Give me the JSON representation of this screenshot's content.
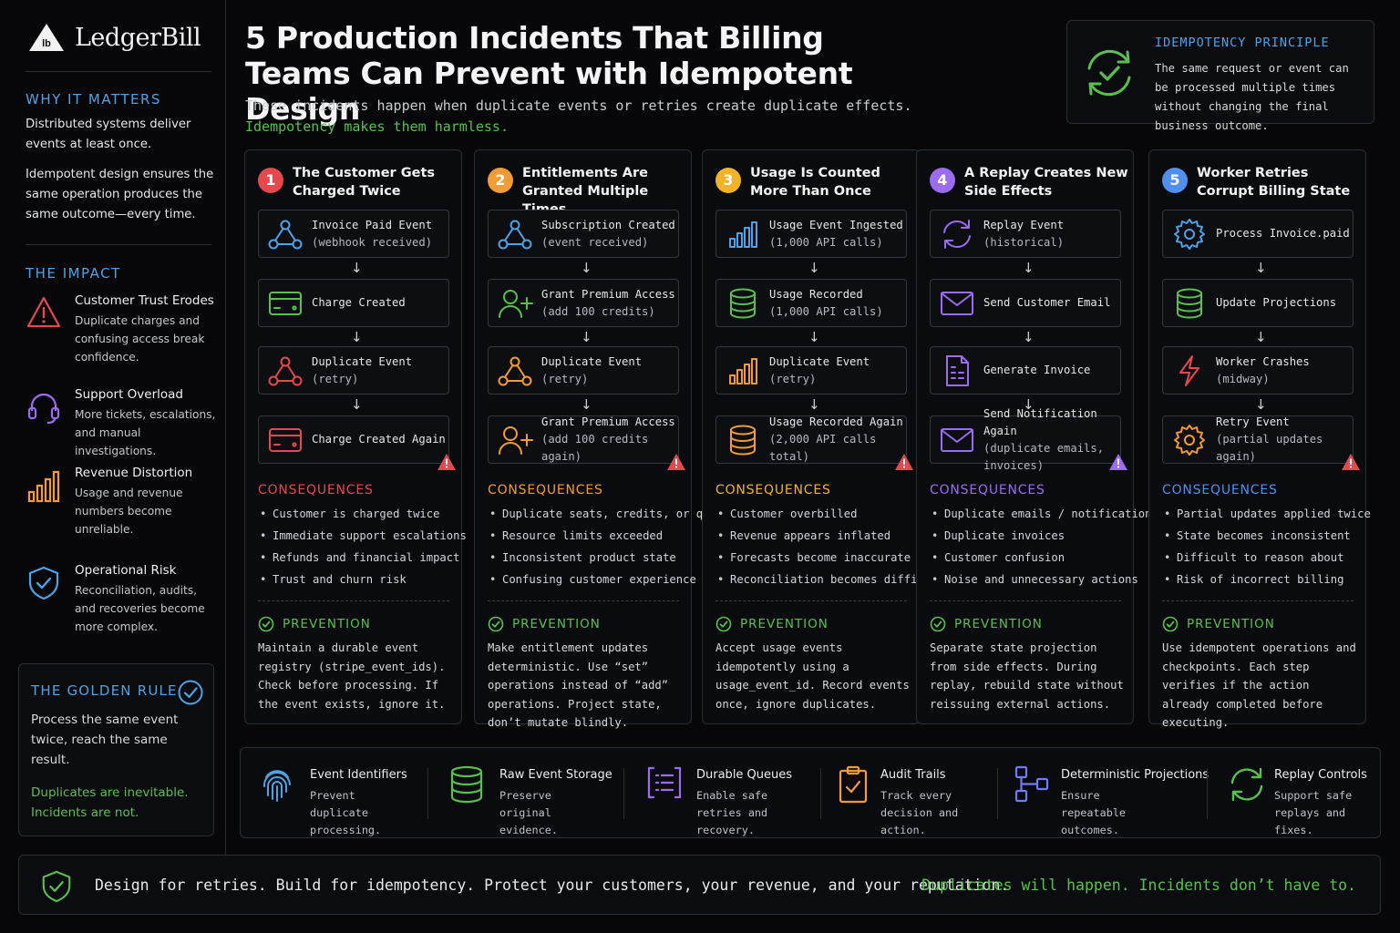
{
  "brand": {
    "logo_text": "lb",
    "name": "LedgerBill"
  },
  "sidebar": {
    "why_heading": "WHY IT MATTERS",
    "why_p1": "Distributed systems deliver events at least once.",
    "why_p2": "Idempotent design ensures the same operation produces the same outcome—every time.",
    "impact_heading": "THE IMPACT",
    "impacts": [
      {
        "title": "Customer Trust Erodes",
        "text": "Duplicate charges and confusing access break confidence.",
        "icon": "warning-triangle-icon",
        "color": "#e5484d"
      },
      {
        "title": "Support Overload",
        "text": "More tickets, escalations, and manual investigations.",
        "icon": "headset-icon",
        "color": "#9b6cf0"
      },
      {
        "title": "Revenue Distortion",
        "text": "Usage and revenue numbers become unreliable.",
        "icon": "bar-chart-icon",
        "color": "#f29c38"
      },
      {
        "title": "Operational Risk",
        "text": "Reconciliation, audits, and recoveries become more complex.",
        "icon": "shield-check-icon",
        "color": "#4ea2e6"
      }
    ],
    "golden": {
      "heading": "THE GOLDEN RULE",
      "text": "Process the same event twice, reach the same result.",
      "green": "Duplicates are inevitable. Incidents are not."
    }
  },
  "header": {
    "title": "5 Production Incidents That Billing Teams Can Prevent with Idempotent Design",
    "subtitle": "These incidents happen when duplicate events or retries create duplicate effects.",
    "subtitle_green": "Idempotency makes them harmless."
  },
  "principle": {
    "heading": "IDEMPOTENCY PRINCIPLE",
    "text": "The same request or event can be processed multiple times without changing the final business outcome."
  },
  "incidents": [
    {
      "number": "1",
      "color": "#e5484d",
      "title": "The Customer Gets Charged Twice",
      "steps": [
        {
          "label": "Invoice Paid Event",
          "sub": "(webhook received)",
          "icon": "webhook-icon",
          "icon_color": "#4ea2e6"
        },
        {
          "label": "Charge Created",
          "sub": "",
          "icon": "credit-card-icon",
          "icon_color": "#59c04f"
        },
        {
          "label": "Duplicate Event",
          "sub": "(retry)",
          "icon": "webhook-icon",
          "icon_color": "#e5484d"
        },
        {
          "label": "Charge Created Again",
          "sub": "",
          "icon": "credit-card-icon",
          "icon_color": "#e5484d"
        }
      ],
      "consequences_heading": "CONSEQUENCES",
      "consequences": [
        "Customer is charged twice",
        "Immediate support escalations",
        "Refunds and financial impact",
        "Trust and churn risk"
      ],
      "prevention_heading": "PREVENTION",
      "prevention": "Maintain a durable event registry (stripe_event_ids). Check before processing. If the event exists, ignore it."
    },
    {
      "number": "2",
      "color": "#f29c38",
      "title": "Entitlements Are Granted Multiple Times",
      "steps": [
        {
          "label": "Subscription Created",
          "sub": "(event received)",
          "icon": "webhook-icon",
          "icon_color": "#4ea2e6"
        },
        {
          "label": "Grant Premium Access",
          "sub": "(add 100 credits)",
          "icon": "user-plus-icon",
          "icon_color": "#59c04f"
        },
        {
          "label": "Duplicate Event",
          "sub": "(retry)",
          "icon": "webhook-icon",
          "icon_color": "#f29c38"
        },
        {
          "label": "Grant Premium Access",
          "sub": "(add 100 credits again)",
          "icon": "user-plus-icon",
          "icon_color": "#f29c38"
        }
      ],
      "consequences_heading": "CONSEQUENCES",
      "consequences": [
        "Duplicate seats, credits, or quotas",
        "Resource limits exceeded",
        "Inconsistent product state",
        "Confusing customer experience"
      ],
      "prevention_heading": "PREVENTION",
      "prevention": "Make entitlement updates deterministic. Use “set” operations instead of “add” operations. Project state, don’t mutate blindly."
    },
    {
      "number": "3",
      "color": "#f2b328",
      "title": "Usage Is Counted More Than Once",
      "steps": [
        {
          "label": "Usage Event Ingested",
          "sub": "(1,000 API calls)",
          "icon": "bar-chart-icon",
          "icon_color": "#4ea2e6"
        },
        {
          "label": "Usage Recorded",
          "sub": "(1,000 API calls)",
          "icon": "database-icon",
          "icon_color": "#59c04f"
        },
        {
          "label": "Duplicate Event",
          "sub": "(retry)",
          "icon": "bar-chart-icon",
          "icon_color": "#f29c38"
        },
        {
          "label": "Usage Recorded Again",
          "sub": "(2,000 API calls total)",
          "icon": "database-icon",
          "icon_color": "#f29c38"
        }
      ],
      "consequences_heading": "CONSEQUENCES",
      "consequences": [
        "Customer overbilled",
        "Revenue appears inflated",
        "Forecasts become inaccurate",
        "Reconciliation becomes difficult"
      ],
      "prevention_heading": "PREVENTION",
      "prevention": "Accept usage events idempotently using a usage_event_id. Record events once, ignore duplicates."
    },
    {
      "number": "4",
      "color": "#9b6cf0",
      "title": "A Replay Creates New Side Effects",
      "steps": [
        {
          "label": "Replay Event",
          "sub": "(historical)",
          "icon": "replay-icon",
          "icon_color": "#9b6cf0"
        },
        {
          "label": "Send Customer Email",
          "sub": "",
          "icon": "envelope-icon",
          "icon_color": "#9b6cf0"
        },
        {
          "label": "Generate Invoice",
          "sub": "",
          "icon": "invoice-icon",
          "icon_color": "#9b6cf0"
        },
        {
          "label": "Send Notification Again",
          "sub": "(duplicate emails, invoices)",
          "icon": "envelope-icon",
          "icon_color": "#9b6cf0"
        }
      ],
      "consequences_heading": "CONSEQUENCES",
      "consequences": [
        "Duplicate emails / notifications",
        "Duplicate invoices",
        "Customer confusion",
        "Noise and unnecessary actions"
      ],
      "prevention_heading": "PREVENTION",
      "prevention": "Separate state projection from side effects. During replay, rebuild state without reissuing external actions."
    },
    {
      "number": "5",
      "color": "#4e8ff0",
      "title": "Worker Retries Corrupt Billing State",
      "steps": [
        {
          "label": "Process Invoice.paid",
          "sub": "",
          "icon": "gear-icon",
          "icon_color": "#4ea2e6"
        },
        {
          "label": "Update Projections",
          "sub": "",
          "icon": "database-icon",
          "icon_color": "#59c04f"
        },
        {
          "label": "Worker Crashes",
          "sub": "(midway)",
          "icon": "lightning-icon",
          "icon_color": "#e5484d"
        },
        {
          "label": "Retry Event",
          "sub": "(partial updates again)",
          "icon": "gear-icon",
          "icon_color": "#f29c38"
        }
      ],
      "consequences_heading": "CONSEQUENCES",
      "consequences": [
        "Partial updates applied twice",
        "State becomes inconsistent",
        "Difficult to reason about",
        "Risk of incorrect billing"
      ],
      "prevention_heading": "PREVENTION",
      "prevention": "Use idempotent operations and checkpoints. Each step verifies if the action already completed before executing."
    }
  ],
  "tools": [
    {
      "title": "Event Identifiers",
      "text": "Prevent duplicate processing.",
      "icon": "fingerprint-icon",
      "color": "#4ea2e6"
    },
    {
      "title": "Raw Event Storage",
      "text": "Preserve original evidence.",
      "icon": "database-icon",
      "color": "#59c04f"
    },
    {
      "title": "Durable Queues",
      "text": "Enable safe retries and recovery.",
      "icon": "queue-list-icon",
      "color": "#9b6cf0"
    },
    {
      "title": "Audit Trails",
      "text": "Track every decision and action.",
      "icon": "clipboard-check-icon",
      "color": "#f29c38"
    },
    {
      "title": "Deterministic Projections",
      "text": "Ensure repeatable outcomes.",
      "icon": "flow-diagram-icon",
      "color": "#6f7cf5"
    },
    {
      "title": "Replay Controls",
      "text": "Support safe replays and fixes.",
      "icon": "replay-icon",
      "color": "#59c04f"
    }
  ],
  "footer": {
    "text": "Design for retries. Build for idempotency. Protect your customers, your revenue, and your reputation.",
    "green": "Duplicates will happen. Incidents don’t have to."
  }
}
